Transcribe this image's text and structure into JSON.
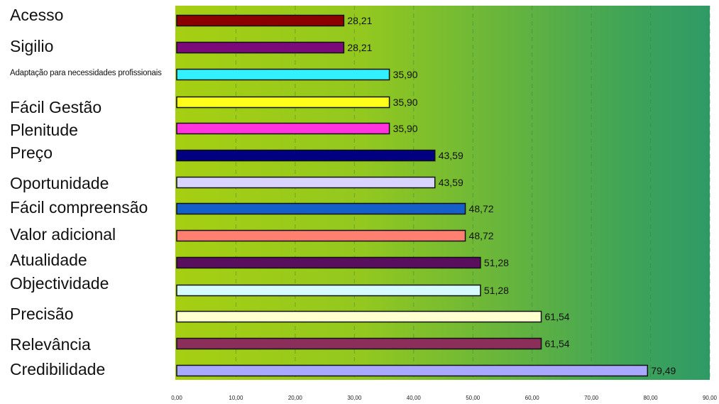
{
  "chart_data": {
    "type": "bar",
    "orientation": "horizontal",
    "title": "",
    "xlabel": "",
    "ylabel": "",
    "xlim": [
      0,
      90
    ],
    "x_tick_labels": [
      "0,00",
      "10,00",
      "20,00",
      "30,00",
      "40,00",
      "50,00",
      "60,00",
      "70,00",
      "80,00",
      "90,00"
    ],
    "x_ticks": [
      0,
      10,
      20,
      30,
      40,
      50,
      60,
      70,
      80,
      90
    ],
    "grid": "vertical dashed",
    "legend": "none",
    "background": "gradient lime-green to teal-green",
    "categories": [
      "Acesso",
      "Sigilio",
      "Adaptação para necessidades profissionais",
      "Fácil Gestão",
      "Plenitude",
      "Preço",
      "Oportunidade",
      "Fácil compreensão",
      "Valor adicional",
      "Atualidade",
      "Objectividade",
      "Precisão",
      "Relevância",
      "Credibilidade"
    ],
    "values": [
      28.21,
      28.21,
      35.9,
      35.9,
      35.9,
      43.59,
      43.59,
      48.72,
      48.72,
      51.28,
      51.28,
      61.54,
      61.54,
      79.49
    ],
    "value_labels": [
      "28,21",
      "28,21",
      "35,90",
      "35,90",
      "35,90",
      "43,59",
      "43,59",
      "48,72",
      "48,72",
      "51,28",
      "51,28",
      "61,54",
      "61,54",
      "79,49"
    ],
    "bar_colors": [
      "#8B0000",
      "#7B0A7B",
      "#33F0FF",
      "#FFFF1A",
      "#FF33E0",
      "#000080",
      "#D8D4FF",
      "#1560C8",
      "#FF8070",
      "#5A0E5E",
      "#D6FBFF",
      "#FFFFD0",
      "#8B2F5A",
      "#A8A8FF"
    ]
  }
}
